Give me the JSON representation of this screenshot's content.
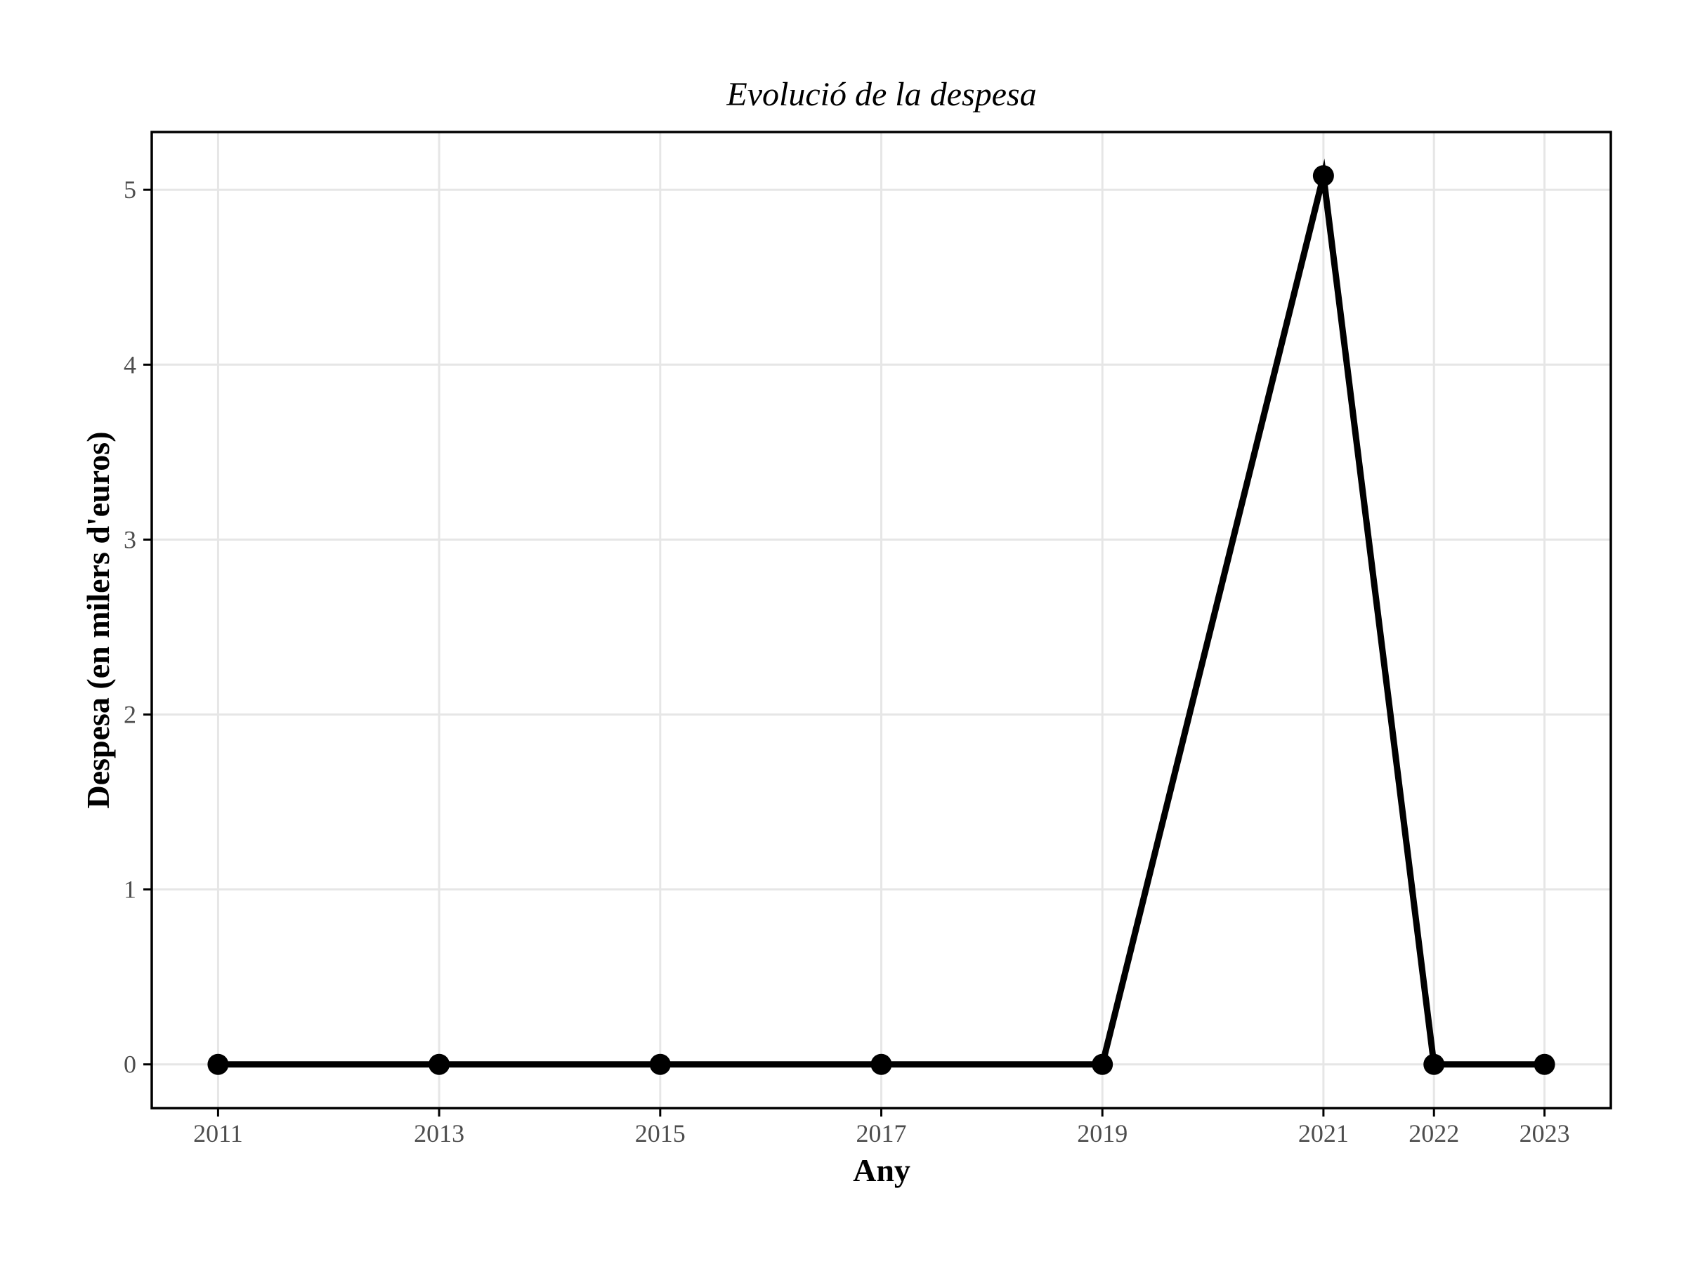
{
  "chart_data": {
    "type": "line",
    "title": "Evolució de la despesa",
    "xlabel": "Any",
    "ylabel": "Despesa (en milers d'euros)",
    "x_ticks": [
      2011,
      2013,
      2015,
      2017,
      2019,
      2021,
      2022,
      2023
    ],
    "y_ticks": [
      0,
      1,
      2,
      3,
      4,
      5
    ],
    "xlim": [
      2010.4,
      2023.6
    ],
    "ylim": [
      -0.25,
      5.33
    ],
    "grid": true,
    "series": [
      {
        "x": [
          2011,
          2013,
          2015,
          2017,
          2019,
          2021,
          2022,
          2023
        ],
        "values": [
          0,
          0,
          0,
          0,
          0,
          5.08,
          0,
          0
        ],
        "color": "#000000"
      }
    ]
  }
}
